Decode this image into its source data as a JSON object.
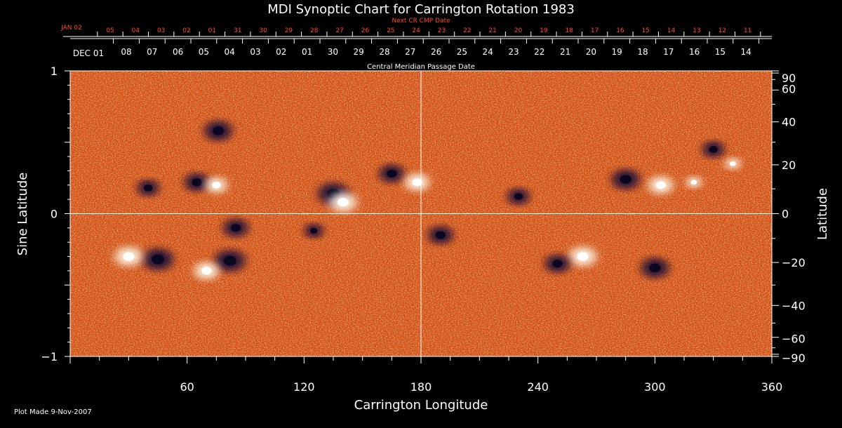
{
  "chart_data": {
    "type": "heatmap",
    "title": "MDI Synoptic Chart for Carrington Rotation 1983",
    "xlabel": "Carrington Longitude",
    "ylabel_left": "Sine Latitude",
    "ylabel_right": "Latitude",
    "xlim": [
      0,
      360
    ],
    "ylim": [
      -1,
      1
    ],
    "x_ticks": [
      60,
      120,
      180,
      240,
      300,
      360
    ],
    "y_ticks_left": [
      {
        "value": 1,
        "label": "1"
      },
      {
        "value": 0,
        "label": "0"
      },
      {
        "value": -1,
        "label": "−1"
      }
    ],
    "y_ticks_right": [
      90,
      60,
      40,
      20,
      0,
      -20,
      -40,
      -60,
      -90
    ],
    "top_axis": {
      "label": "Central Meridian Passage Date",
      "first_label": "DEC 01",
      "labels": [
        "08",
        "07",
        "06",
        "05",
        "04",
        "03",
        "02",
        "01",
        "30",
        "29",
        "28",
        "27",
        "26",
        "25",
        "24",
        "23",
        "22",
        "21",
        "20",
        "19",
        "18",
        "17",
        "16",
        "15",
        "14"
      ]
    },
    "next_cr_axis": {
      "label": "Next CR CMP Date",
      "first_label": "JAN 02",
      "labels": [
        "05",
        "04",
        "03",
        "02",
        "01",
        "31",
        "30",
        "29",
        "28",
        "27",
        "26",
        "25",
        "24",
        "23",
        "22",
        "21",
        "20",
        "19",
        "18",
        "17",
        "16",
        "15",
        "14",
        "13",
        "12",
        "11"
      ]
    },
    "colormap": [
      "#1a0f4a",
      "#c03a00",
      "#ff7a1a",
      "#ffffff"
    ],
    "regions": [
      {
        "lon": 45,
        "sinlat": -0.32,
        "polarity": "neg",
        "strength": 1.0
      },
      {
        "lon": 30,
        "sinlat": -0.3,
        "polarity": "pos",
        "strength": 0.9
      },
      {
        "lon": 82,
        "sinlat": -0.33,
        "polarity": "neg",
        "strength": 1.0
      },
      {
        "lon": 70,
        "sinlat": -0.4,
        "polarity": "pos",
        "strength": 0.8
      },
      {
        "lon": 85,
        "sinlat": -0.1,
        "polarity": "neg",
        "strength": 0.8
      },
      {
        "lon": 76,
        "sinlat": 0.58,
        "polarity": "neg",
        "strength": 0.9
      },
      {
        "lon": 40,
        "sinlat": 0.18,
        "polarity": "neg",
        "strength": 0.7
      },
      {
        "lon": 65,
        "sinlat": 0.22,
        "polarity": "neg",
        "strength": 0.8
      },
      {
        "lon": 75,
        "sinlat": 0.2,
        "polarity": "pos",
        "strength": 0.7
      },
      {
        "lon": 135,
        "sinlat": 0.14,
        "polarity": "neg",
        "strength": 1.0
      },
      {
        "lon": 140,
        "sinlat": 0.08,
        "polarity": "pos",
        "strength": 0.9
      },
      {
        "lon": 125,
        "sinlat": -0.12,
        "polarity": "neg",
        "strength": 0.6
      },
      {
        "lon": 165,
        "sinlat": 0.28,
        "polarity": "neg",
        "strength": 0.8
      },
      {
        "lon": 178,
        "sinlat": 0.22,
        "polarity": "pos",
        "strength": 0.8
      },
      {
        "lon": 230,
        "sinlat": 0.12,
        "polarity": "neg",
        "strength": 0.7
      },
      {
        "lon": 190,
        "sinlat": -0.15,
        "polarity": "neg",
        "strength": 0.8
      },
      {
        "lon": 263,
        "sinlat": -0.3,
        "polarity": "pos",
        "strength": 0.9
      },
      {
        "lon": 250,
        "sinlat": -0.35,
        "polarity": "neg",
        "strength": 0.8
      },
      {
        "lon": 300,
        "sinlat": -0.38,
        "polarity": "neg",
        "strength": 0.9
      },
      {
        "lon": 285,
        "sinlat": 0.24,
        "polarity": "neg",
        "strength": 0.9
      },
      {
        "lon": 303,
        "sinlat": 0.2,
        "polarity": "pos",
        "strength": 0.8
      },
      {
        "lon": 330,
        "sinlat": 0.45,
        "polarity": "neg",
        "strength": 0.7
      },
      {
        "lon": 320,
        "sinlat": 0.22,
        "polarity": "pos",
        "strength": 0.5
      },
      {
        "lon": 340,
        "sinlat": 0.35,
        "polarity": "pos",
        "strength": 0.5
      }
    ]
  },
  "footer": {
    "plot_made": "Plot Made  9-Nov-2007"
  }
}
